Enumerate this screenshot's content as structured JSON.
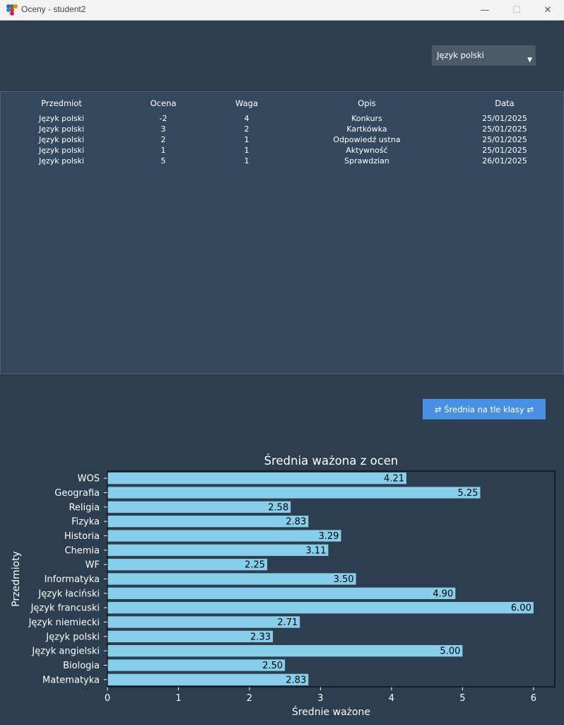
{
  "window": {
    "title": "Oceny - student2",
    "minimize_glyph": "—",
    "maximize_glyph": "☐",
    "close_glyph": "✕"
  },
  "subject_select": {
    "value": "Język polski",
    "arrow": "▼"
  },
  "table": {
    "headers": [
      "Przedmiot",
      "Ocena",
      "Waga",
      "Opis",
      "Data"
    ],
    "rows": [
      [
        "Język polski",
        "-2",
        "4",
        "Konkurs",
        "25/01/2025"
      ],
      [
        "Język polski",
        "3",
        "2",
        "Kartkówka",
        "25/01/2025"
      ],
      [
        "Język polski",
        "2",
        "1",
        "Odpowiedź ustna",
        "25/01/2025"
      ],
      [
        "Język polski",
        "1",
        "1",
        "Aktywność",
        "25/01/2025"
      ],
      [
        "Język polski",
        "5",
        "1",
        "Sprawdzian",
        "26/01/2025"
      ]
    ]
  },
  "compare_button": {
    "label": "⇄ Średnia na tle klasy ⇄"
  },
  "chart_data": {
    "type": "bar",
    "orientation": "horizontal",
    "title": "Średnia ważona z ocen",
    "xlabel": "Średnie ważone",
    "ylabel": "Przedmioty",
    "xlim": [
      0,
      6.3
    ],
    "xticks": [
      0,
      1,
      2,
      3,
      4,
      5,
      6
    ],
    "categories": [
      "Matematyka",
      "Biologia",
      "Język angielski",
      "Język polski",
      "Język niemiecki",
      "Język francuski",
      "Język łaciński",
      "Informatyka",
      "WF",
      "Chemia",
      "Historia",
      "Fizyka",
      "Religia",
      "Geografia",
      "WOS"
    ],
    "values": [
      2.83,
      2.5,
      5.0,
      2.33,
      2.71,
      6.0,
      4.9,
      3.5,
      2.25,
      3.11,
      3.29,
      2.83,
      2.58,
      5.25,
      4.21
    ],
    "labels": [
      "2.83",
      "2.50",
      "5.00",
      "2.33",
      "2.71",
      "6.00",
      "4.90",
      "3.50",
      "2.25",
      "3.11",
      "3.29",
      "2.83",
      "2.58",
      "5.25",
      "4.21"
    ],
    "bar_color": "#87ceeb",
    "grid": false,
    "legend": false
  },
  "colors": {
    "background": "#2c3e50",
    "table_background": "#34495e",
    "button": "#4a90e2",
    "bar": "#87ceeb"
  }
}
